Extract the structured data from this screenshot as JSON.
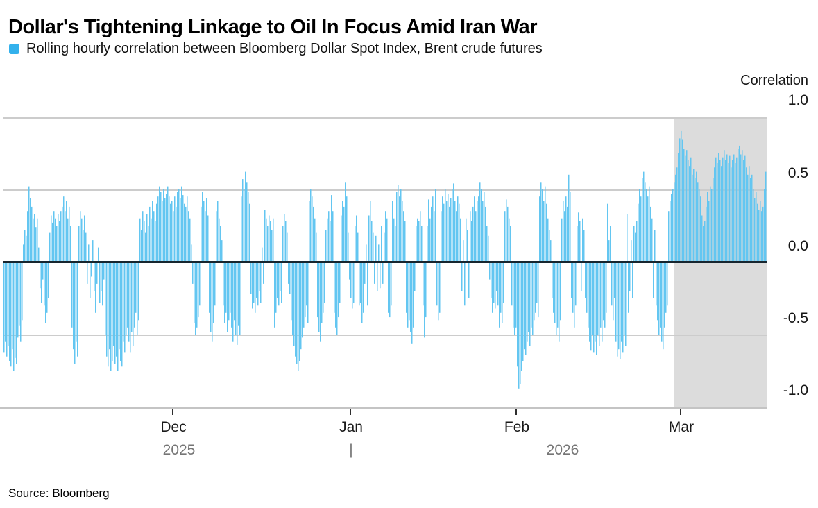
{
  "header": {
    "title": "Dollar's Tightening Linkage to Oil In Focus Amid Iran War",
    "legend_label": "Rolling hourly correlation between Bloomberg Dollar Spot Index, Brent crude futures"
  },
  "axis": {
    "y_title": "Correlation",
    "y_ticks": [
      "1.0",
      "0.5",
      "0.0",
      "-0.5",
      "-1.0"
    ],
    "x_months": [
      "Dec",
      "Jan",
      "Feb",
      "Mar"
    ],
    "x_years": [
      "2025",
      "2026"
    ],
    "year_separator": "|"
  },
  "footer": {
    "source": "Source: Bloomberg"
  },
  "colors": {
    "bar": "#63c6f1",
    "legend_swatch": "#33b1ec",
    "highlight": "#dcdcdc",
    "gridline": "#cccccc",
    "axis_line": "#c4c4c4",
    "zero_line": "#17262f"
  },
  "chart_data": {
    "type": "bar",
    "title": "Dollar's Tightening Linkage to Oil In Focus Amid Iran War",
    "series_name": "Rolling hourly correlation between Bloomberg Dollar Spot Index, Brent crude futures",
    "ylabel": "Correlation",
    "ylim": [
      -1.0,
      1.0
    ],
    "yticks": [
      1.0,
      0.5,
      0.0,
      -0.5,
      -1.0
    ],
    "x_range": "late Nov 2025 to mid Mar 2026, hourly",
    "x_month_ticks": [
      "Dec",
      "Jan",
      "Feb",
      "Mar"
    ],
    "highlight_region": "Iran war period (early-to-mid March 2026) shaded gray, correlation persistently positive 0.3-0.9",
    "grid": true,
    "legend_position": "top-left",
    "bars": [
      -0.62,
      -0.55,
      -0.65,
      -0.58,
      -0.68,
      -0.72,
      -0.6,
      -0.75,
      -0.66,
      -0.7,
      -0.52,
      -0.44,
      -0.55,
      -0.4,
      0.12,
      0.22,
      0.18,
      0.35,
      0.52,
      0.44,
      0.38,
      0.3,
      0.33,
      0.24,
      0.3,
      0.1,
      -0.18,
      -0.28,
      -0.12,
      -0.3,
      -0.42,
      -0.35,
      -0.25,
      0.2,
      0.32,
      0.27,
      0.35,
      0.3,
      0.25,
      0.33,
      0.28,
      0.35,
      0.38,
      0.45,
      0.35,
      0.42,
      0.3,
      0.38,
      0.25,
      -0.45,
      -0.6,
      -0.7,
      -0.55,
      -0.65,
      0.25,
      0.35,
      0.3,
      0.22,
      0.32,
      0.2,
      -0.15,
      0.12,
      -0.25,
      -0.1,
      0.15,
      -0.2,
      -0.35,
      -0.15,
      0.1,
      -0.28,
      -0.2,
      -0.3,
      -0.12,
      -0.5,
      -0.65,
      -0.72,
      -0.6,
      -0.75,
      -0.68,
      -0.58,
      -0.7,
      -0.65,
      -0.75,
      -0.6,
      -0.68,
      -0.72,
      -0.55,
      -0.62,
      -0.5,
      -0.45,
      -0.55,
      -0.62,
      -0.48,
      -0.58,
      -0.45,
      -0.35,
      -0.5,
      -0.4,
      0.3,
      0.22,
      0.35,
      0.28,
      0.2,
      0.33,
      0.25,
      0.38,
      0.3,
      0.42,
      0.35,
      0.28,
      0.4,
      0.45,
      0.52,
      0.48,
      0.42,
      0.5,
      0.44,
      0.47,
      0.52,
      0.45,
      0.4,
      0.42,
      0.35,
      0.45,
      0.38,
      0.48,
      0.5,
      0.44,
      0.52,
      0.46,
      0.4,
      0.38,
      0.45,
      0.35,
      0.3,
      0.12,
      -0.15,
      -0.42,
      -0.5,
      -0.45,
      -0.38,
      -0.3,
      0.38,
      0.48,
      0.42,
      0.35,
      0.44,
      0.32,
      -0.35,
      -0.48,
      -0.55,
      -0.42,
      -0.3,
      0.35,
      0.42,
      0.3,
      0.25,
      0.15,
      -0.3,
      -0.42,
      -0.35,
      -0.48,
      -0.4,
      -0.35,
      -0.45,
      -0.55,
      -0.4,
      -0.5,
      -0.57,
      -0.44,
      -0.5,
      0.45,
      0.57,
      0.5,
      0.62,
      0.55,
      0.48,
      0.4,
      -0.22,
      -0.32,
      -0.28,
      -0.35,
      -0.25,
      -0.3,
      -0.2,
      -0.28,
      0.1,
      -0.15,
      0.36,
      0.3,
      0.25,
      0.32,
      0.28,
      0.22,
      0.3,
      -0.45,
      -0.35,
      -0.25,
      -0.3,
      -0.2,
      -0.28,
      0.25,
      0.33,
      0.28,
      0.2,
      -0.15,
      -0.22,
      -0.4,
      -0.5,
      -0.58,
      -0.65,
      -0.7,
      -0.75,
      -0.68,
      -0.6,
      -0.52,
      -0.45,
      -0.38,
      -0.3,
      -0.42,
      0.42,
      0.5,
      0.45,
      0.38,
      0.3,
      0.2,
      -0.38,
      -0.48,
      -0.55,
      -0.42,
      -0.35,
      -0.28,
      0.22,
      0.3,
      0.35,
      0.28,
      0.46,
      0.35,
      -0.35,
      -0.45,
      -0.5,
      -0.38,
      -0.28,
      0.32,
      0.42,
      0.38,
      0.55,
      0.45,
      0.2,
      -0.12,
      -0.25,
      -0.32,
      -0.28,
      0.25,
      0.32,
      0.2,
      -0.3,
      -0.28,
      -0.42,
      -0.35,
      -0.15,
      0.12,
      -0.3,
      0.32,
      0.42,
      0.28,
      0.2,
      -0.15,
      0.18,
      -0.2,
      0.12,
      -0.18,
      0.25,
      -0.15,
      0.2,
      0.35,
      0.3,
      -0.35,
      -0.38,
      -0.3,
      0.42,
      0.3,
      0.25,
      0.48,
      0.53,
      0.45,
      0.5,
      0.42,
      0.35,
      0.28,
      -0.35,
      -0.45,
      -0.4,
      -0.48,
      -0.56,
      -0.45,
      -0.2,
      0.25,
      0.3,
      0.28,
      0.35,
      0.25,
      -0.3,
      -0.52,
      -0.38,
      0.25,
      0.43,
      0.3,
      0.38,
      0.45,
      0.35,
      0.5,
      -0.3,
      -0.4,
      -0.35,
      0.35,
      0.45,
      0.4,
      0.5,
      0.42,
      0.47,
      0.38,
      0.44,
      0.5,
      0.54,
      0.42,
      0.35,
      0.45,
      0.4,
      0.3,
      -0.2,
      0.15,
      -0.3,
      0.3,
      0.22,
      -0.25,
      0.35,
      0.28,
      0.38,
      0.45,
      0.35,
      0.42,
      0.45,
      0.55,
      0.5,
      0.42,
      0.48,
      0.38,
      0.25,
      0.18,
      -0.12,
      -0.25,
      -0.35,
      -0.28,
      -0.32,
      -0.2,
      -0.3,
      -0.45,
      -0.35,
      -0.42,
      -0.28,
      0.35,
      0.43,
      0.38,
      0.3,
      0.25,
      -0.3,
      -0.45,
      -0.5,
      -0.45,
      -0.72,
      -0.87,
      -0.84,
      -0.75,
      -0.68,
      -0.6,
      -0.64,
      -0.55,
      -0.48,
      -0.58,
      -0.45,
      -0.5,
      -0.4,
      -0.35,
      -0.28,
      -0.38,
      0.45,
      0.55,
      0.5,
      0.42,
      0.52,
      0.4,
      0.3,
      0.22,
      0.15,
      -0.25,
      -0.35,
      -0.42,
      -0.5,
      -0.45,
      -0.55,
      -0.4,
      0.3,
      0.42,
      0.35,
      0.45,
      0.38,
      0.6,
      0.48,
      -0.25,
      -0.35,
      -0.45,
      -0.3,
      0.25,
      0.34,
      0.28,
      -0.2,
      0.3,
      0.22,
      -0.25,
      -0.35,
      -0.45,
      -0.55,
      -0.61,
      -0.5,
      -0.62,
      -0.55,
      -0.64,
      -0.5,
      -0.58,
      -0.45,
      -0.55,
      -0.4,
      -0.45,
      -0.35,
      0.4,
      0.15,
      0.25,
      -0.3,
      -0.4,
      -0.25,
      -0.55,
      -0.65,
      -0.6,
      -0.67,
      -0.55,
      -0.62,
      -0.5,
      -0.58,
      0.33,
      -0.35,
      -0.2,
      0.15,
      -0.25,
      0.25,
      0.2,
      0.28,
      0.4,
      0.5,
      0.45,
      0.58,
      0.62,
      0.55,
      0.5,
      0.45,
      0.52,
      0.38,
      0.3,
      -0.25,
      0.22,
      -0.3,
      -0.4,
      -0.5,
      -0.45,
      -0.55,
      -0.6,
      -0.45,
      -0.35,
      -0.3,
      0.35,
      0.42,
      0.47,
      0.5,
      0.55,
      0.6,
      0.65,
      0.75,
      0.85,
      0.9,
      0.84,
      0.78,
      0.73,
      0.77,
      0.7,
      0.66,
      0.72,
      0.6,
      0.64,
      0.58,
      0.62,
      0.55,
      0.5,
      0.45,
      0.32,
      0.25,
      0.28,
      0.38,
      0.48,
      0.42,
      0.52,
      0.5,
      0.58,
      0.65,
      0.72,
      0.68,
      0.75,
      0.7,
      0.66,
      0.72,
      0.77,
      0.7,
      0.74,
      0.68,
      0.73,
      0.65,
      0.7,
      0.74,
      0.68,
      0.72,
      0.78,
      0.8,
      0.74,
      0.77,
      0.7,
      0.73,
      0.65,
      0.6,
      0.66,
      0.58,
      0.6,
      0.5,
      0.44,
      0.48,
      0.4,
      0.36,
      0.42,
      0.35,
      0.38,
      0.5,
      0.62
    ]
  }
}
